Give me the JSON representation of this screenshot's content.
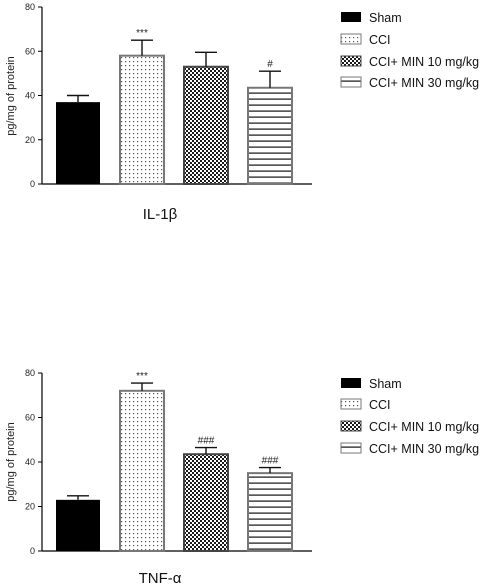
{
  "charts": [
    {
      "id": "il1b",
      "xlabel": "IL-1β",
      "ylabel": "pg/mg of protein",
      "yticks": [
        "0",
        "20",
        "40",
        "60",
        "80"
      ],
      "significance": [
        "",
        "***",
        "",
        "#"
      ]
    },
    {
      "id": "tnfa",
      "xlabel": "TNF-α",
      "ylabel": "pg/mg of protein",
      "yticks": [
        "0",
        "20",
        "40",
        "60",
        "80"
      ],
      "significance": [
        "",
        "***",
        "###",
        "###"
      ]
    }
  ],
  "legend": [
    "Sham",
    "CCI",
    "CCI+ MIN 10 mg/kg",
    "CCI+ MIN 30 mg/kg"
  ],
  "chart_data": [
    {
      "type": "bar",
      "title": "",
      "xlabel": "IL-1β",
      "ylabel": "pg/mg of protein",
      "ylim": [
        0,
        80
      ],
      "categories": [
        "Sham",
        "CCI",
        "CCI+ MIN 10 mg/kg",
        "CCI+ MIN 30 mg/kg"
      ],
      "values": [
        37,
        58,
        53,
        43.5
      ],
      "error": [
        3,
        7,
        6.5,
        7.5
      ],
      "significance": [
        "",
        "***",
        "",
        "#"
      ],
      "legend_position": "right"
    },
    {
      "type": "bar",
      "title": "",
      "xlabel": "TNF-α",
      "ylabel": "pg/mg of protein",
      "ylim": [
        0,
        80
      ],
      "categories": [
        "Sham",
        "CCI",
        "CCI+ MIN 10 mg/kg",
        "CCI+ MIN 30 mg/kg"
      ],
      "values": [
        23,
        72,
        43.5,
        35
      ],
      "error": [
        1.8,
        3.5,
        3,
        2.5
      ],
      "significance": [
        "",
        "***",
        "###",
        "###"
      ],
      "legend_position": "right"
    }
  ]
}
